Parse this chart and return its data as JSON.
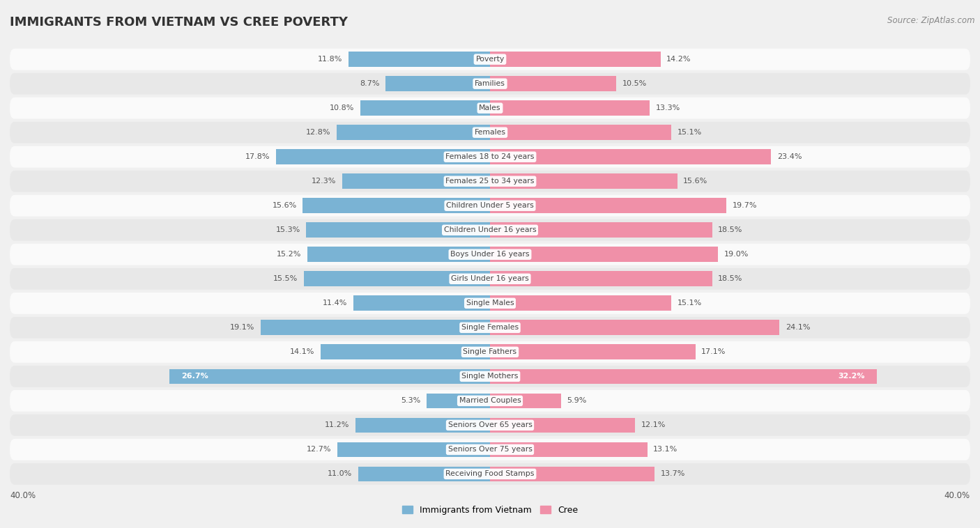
{
  "title": "IMMIGRANTS FROM VIETNAM VS CREE POVERTY",
  "source": "Source: ZipAtlas.com",
  "categories": [
    "Poverty",
    "Families",
    "Males",
    "Females",
    "Females 18 to 24 years",
    "Females 25 to 34 years",
    "Children Under 5 years",
    "Children Under 16 years",
    "Boys Under 16 years",
    "Girls Under 16 years",
    "Single Males",
    "Single Females",
    "Single Fathers",
    "Single Mothers",
    "Married Couples",
    "Seniors Over 65 years",
    "Seniors Over 75 years",
    "Receiving Food Stamps"
  ],
  "vietnam_values": [
    11.8,
    8.7,
    10.8,
    12.8,
    17.8,
    12.3,
    15.6,
    15.3,
    15.2,
    15.5,
    11.4,
    19.1,
    14.1,
    26.7,
    5.3,
    11.2,
    12.7,
    11.0
  ],
  "cree_values": [
    14.2,
    10.5,
    13.3,
    15.1,
    23.4,
    15.6,
    19.7,
    18.5,
    19.0,
    18.5,
    15.1,
    24.1,
    17.1,
    32.2,
    5.9,
    12.1,
    13.1,
    13.7
  ],
  "vietnam_color": "#7ab3d4",
  "cree_color": "#f090a8",
  "xlim": 40.0,
  "background_color": "#f0f0f0",
  "row_color_light": "#fafafa",
  "row_color_dark": "#e8e8e8",
  "label_color": "#555555",
  "legend_vietnam": "Immigrants from Vietnam",
  "legend_cree": "Cree"
}
